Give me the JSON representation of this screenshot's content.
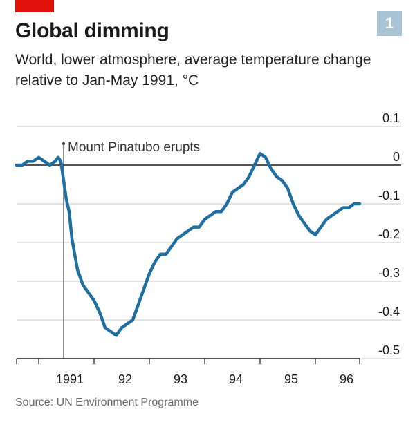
{
  "header": {
    "title": "Global dimming",
    "subtitle": "World, lower atmosphere, average temperature change relative to Jan-May 1991, °C",
    "badge": "1",
    "source": "Source: UN Environment Programme"
  },
  "colors": {
    "line": "#1f6fa1",
    "grid": "#c8c8c8",
    "zero_line": "#1a1a1a",
    "badge": "#a8c4d6",
    "tag": "#e3120b"
  },
  "chart_data": {
    "type": "line",
    "title": "Global dimming",
    "subtitle": "World, lower atmosphere, average temperature change relative to Jan-May 1991, °C",
    "xlabel": "",
    "ylabel": "",
    "y_axis_side": "right",
    "xlim": [
      1990.6,
      1996.8
    ],
    "ylim": [
      -0.5,
      0.1
    ],
    "y_ticks": [
      0.1,
      0,
      -0.1,
      -0.2,
      -0.3,
      -0.4,
      -0.5
    ],
    "y_tick_labels": [
      "0.1",
      "0",
      "-0.1",
      "-0.2",
      "-0.3",
      "-0.4",
      "-0.5"
    ],
    "x_ticks": [
      1991,
      1992,
      1993,
      1994,
      1995,
      1996
    ],
    "x_tick_labels": [
      "1991",
      "92",
      "93",
      "94",
      "95",
      "96"
    ],
    "grid": true,
    "annotation": {
      "text": "Mount Pinatubo erupts",
      "x": 1991.45
    },
    "series": [
      {
        "x": [
          1990.6,
          1990.7,
          1990.8,
          1990.9,
          1991.0,
          1991.1,
          1991.2,
          1991.3,
          1991.35,
          1991.4,
          1991.45,
          1991.5,
          1991.55,
          1991.6,
          1991.7,
          1991.8,
          1991.9,
          1992.0,
          1992.1,
          1992.2,
          1992.3,
          1992.4,
          1992.5,
          1992.6,
          1992.7,
          1992.75,
          1992.8,
          1992.9,
          1993.0,
          1993.1,
          1993.2,
          1993.3,
          1993.4,
          1993.5,
          1993.6,
          1993.7,
          1993.8,
          1993.9,
          1994.0,
          1994.1,
          1994.2,
          1994.3,
          1994.4,
          1994.5,
          1994.6,
          1994.7,
          1994.8,
          1994.9,
          1995.0,
          1995.1,
          1995.2,
          1995.3,
          1995.4,
          1995.5,
          1995.6,
          1995.7,
          1995.8,
          1995.9,
          1996.0,
          1996.05,
          1996.1,
          1996.2,
          1996.3,
          1996.4,
          1996.5,
          1996.6,
          1996.7,
          1996.8
        ],
        "values": [
          0.0,
          0.0,
          0.01,
          0.01,
          0.02,
          0.01,
          0.0,
          0.01,
          0.02,
          0.01,
          -0.04,
          -0.09,
          -0.12,
          -0.19,
          -0.27,
          -0.31,
          -0.33,
          -0.35,
          -0.38,
          -0.42,
          -0.43,
          -0.44,
          -0.42,
          -0.41,
          -0.4,
          -0.38,
          -0.36,
          -0.32,
          -0.28,
          -0.25,
          -0.23,
          -0.23,
          -0.21,
          -0.19,
          -0.18,
          -0.17,
          -0.16,
          -0.16,
          -0.14,
          -0.13,
          -0.12,
          -0.12,
          -0.1,
          -0.07,
          -0.06,
          -0.05,
          -0.03,
          0.0,
          0.03,
          0.02,
          -0.01,
          -0.03,
          -0.04,
          -0.06,
          -0.1,
          -0.13,
          -0.15,
          -0.17,
          -0.18,
          -0.17,
          -0.16,
          -0.14,
          -0.13,
          -0.12,
          -0.11,
          -0.11,
          -0.1,
          -0.1
        ]
      }
    ]
  }
}
